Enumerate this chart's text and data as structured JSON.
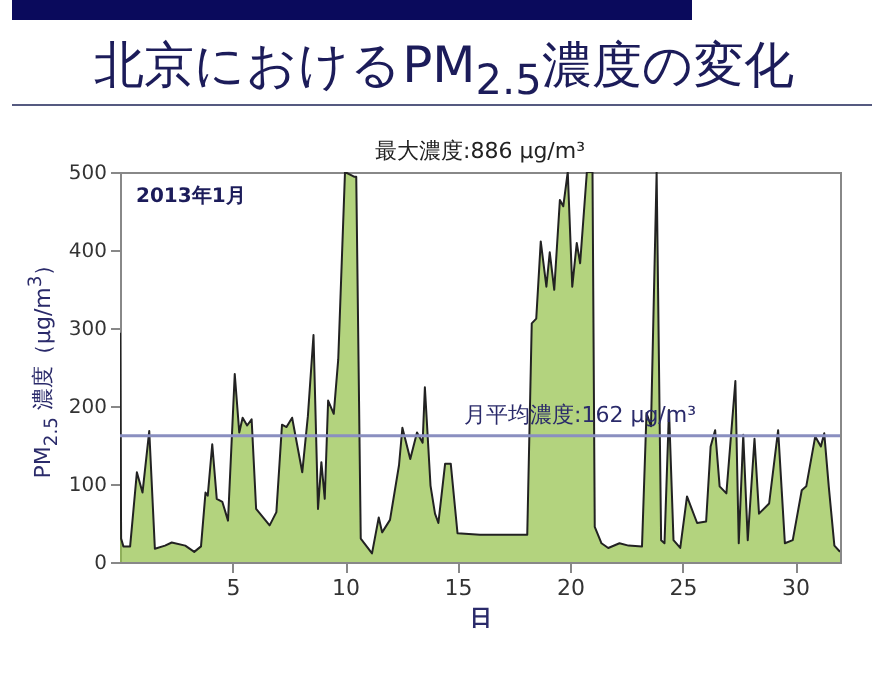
{
  "chart_data": {
    "type": "area",
    "title": "北京におけるPM$_{2.5}$濃度の変化",
    "xlabel": "日",
    "ylabel": "PM$_{2.5}$ 濃度（μg/m$^{3}$）",
    "annotations": [
      "最大濃度:886 μg/m³",
      "2013年1月"
    ],
    "x": [
      0,
      0.05,
      0.15,
      0.45,
      0.75,
      1.0,
      1.3,
      1.55,
      2,
      2.3,
      2.9,
      3.3,
      3.6,
      3.8,
      3.9,
      4.1,
      4.3,
      4.55,
      4.8,
      5.1,
      5.3,
      5.45,
      5.65,
      5.85,
      6.05,
      6.65,
      6.95,
      7.2,
      7.4,
      7.65,
      8.1,
      8.35,
      8.6,
      8.8,
      8.95,
      9.1,
      9.25,
      9.5,
      9.7,
      10,
      10.4,
      10.5,
      10.7,
      11.2,
      11.5,
      11.65,
      12.0,
      12.4,
      12.55,
      12.9,
      13.2,
      13.45,
      13.55,
      13.8,
      14.0,
      14.15,
      14.45,
      14.7,
      15.0,
      16,
      18.1,
      18.3,
      18.5,
      18.7,
      18.95,
      19.1,
      19.3,
      19.55,
      19.7,
      19.9,
      20.1,
      20.3,
      20.45,
      20.75,
      21,
      21.1,
      21.4,
      21.7,
      22.2,
      22.6,
      23.2,
      23.4,
      23.6,
      23.85,
      24.05,
      24.2,
      24.4,
      24.6,
      24.9,
      25.2,
      25.65,
      26.05,
      26.25,
      26.45,
      26.65,
      26.95,
      27.35,
      27.5,
      27.7,
      27.9,
      28.2,
      28.4,
      28.85,
      29.25,
      29.55,
      29.9,
      30.3,
      30.5,
      30.9,
      31.15,
      31.3,
      31.5,
      31.75,
      32
    ],
    "values": [
      294,
      30,
      20,
      20,
      115,
      89,
      168,
      17,
      21,
      25,
      21,
      13,
      20,
      89,
      85,
      151,
      81,
      77,
      53,
      241,
      166,
      185,
      175,
      183,
      68,
      47,
      64,
      176,
      173,
      185,
      115,
      187,
      291,
      68,
      128,
      81,
      207,
      190,
      260,
      500,
      494,
      494,
      30,
      11,
      57,
      38,
      54,
      124,
      172,
      132,
      166,
      153,
      224,
      98,
      62,
      50,
      126,
      126,
      37,
      35,
      35,
      306,
      312,
      411,
      353,
      397,
      349,
      464,
      456,
      500,
      353,
      409,
      383,
      500,
      500,
      45,
      24,
      18,
      24,
      21,
      20,
      191,
      174,
      500,
      28,
      24,
      195,
      28,
      18,
      84,
      50,
      52,
      148,
      169,
      97,
      88,
      232,
      24,
      163,
      28,
      158,
      62,
      75,
      169,
      24,
      28,
      92,
      97,
      161,
      148,
      165,
      97,
      21,
      13
    ],
    "color": "#93c047",
    "xlim": [
      0,
      32
    ],
    "ylim": [
      0,
      500
    ],
    "xticks": [
      5,
      10,
      15,
      20,
      25,
      30
    ],
    "yticks": [
      0,
      100,
      200,
      300,
      400,
      500
    ],
    "ref_lines": [
      {
        "axis": "y",
        "value": 162,
        "label": "月平均濃度:162 μg/m³",
        "color": "#8a8fc0"
      }
    ]
  }
}
